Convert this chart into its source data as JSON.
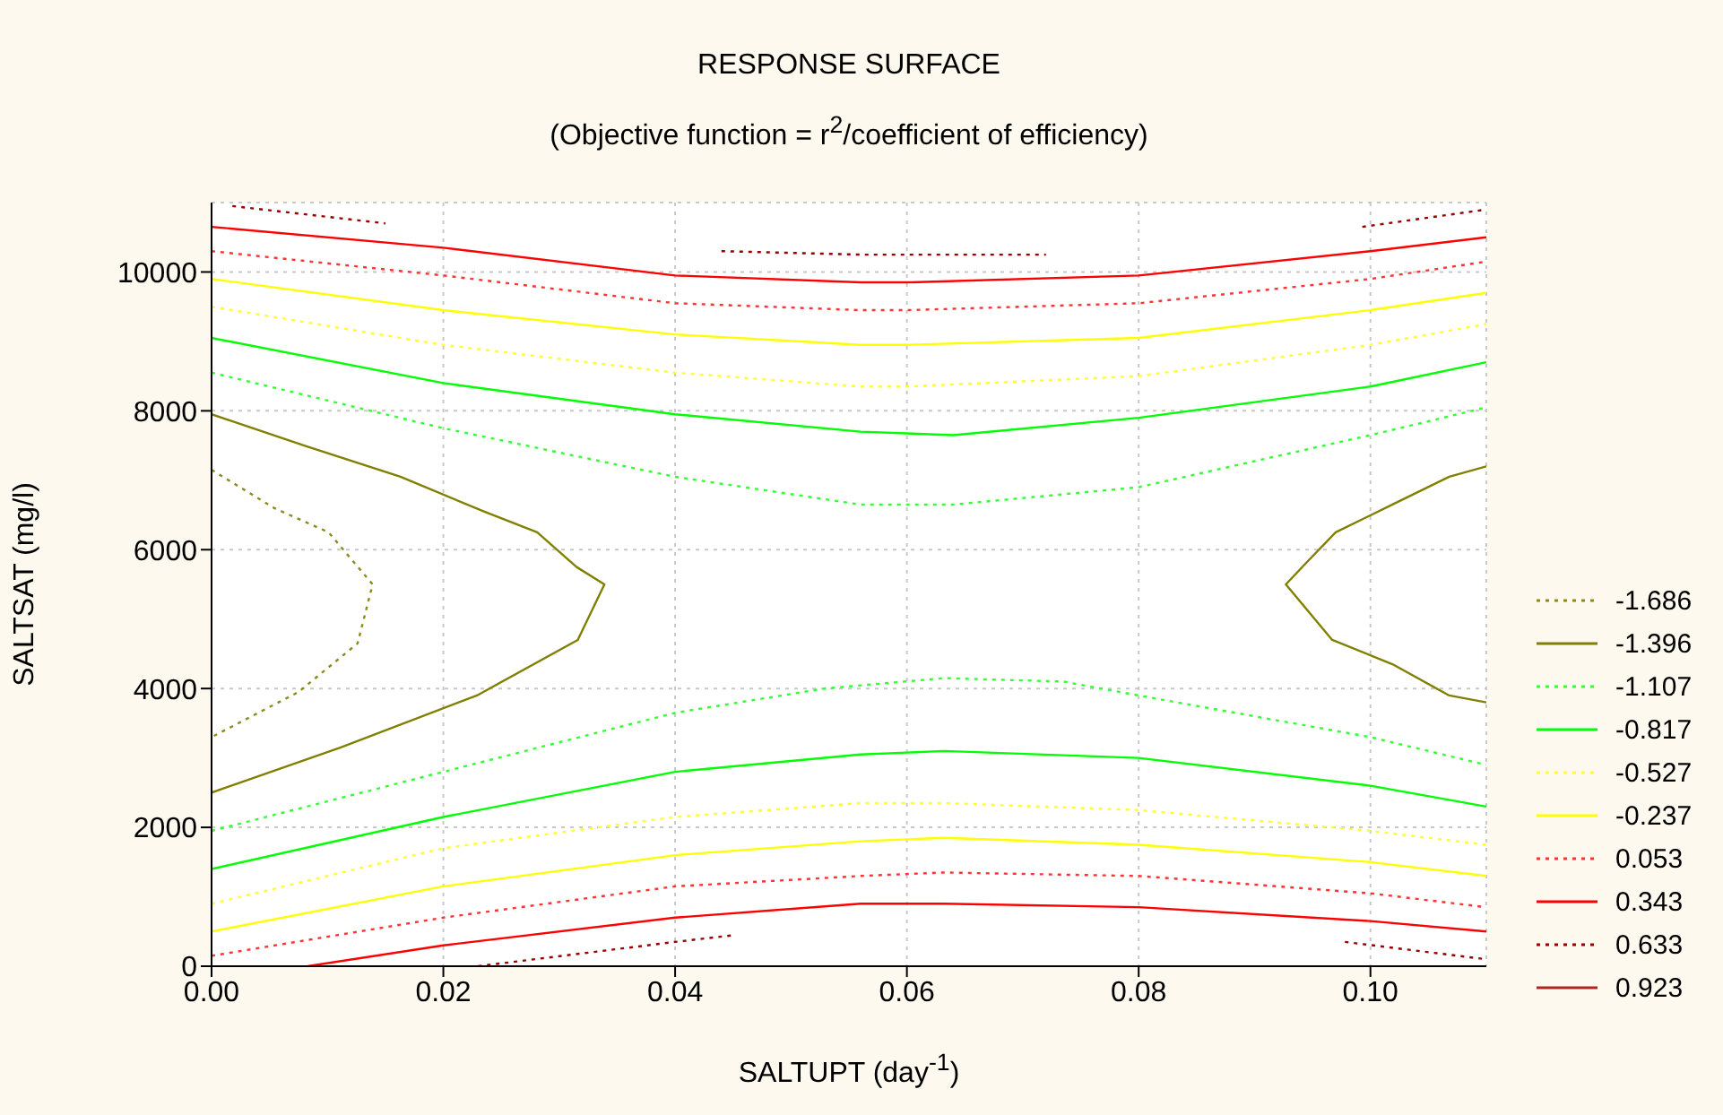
{
  "chart_data": {
    "type": "line",
    "title": "RESPONSE SURFACE",
    "subtitle": "(Objective function = r$^{2}$/coefficient of efficiency)",
    "xlabel": "SALTUPT (day$^{-1}$)",
    "ylabel": "SALTSAT (mg/l)",
    "xlim": [
      0,
      0.11
    ],
    "ylim": [
      0,
      11000
    ],
    "xticks": [
      {
        "value": 0,
        "label": "0.00"
      },
      {
        "value": 0.02,
        "label": "0.02"
      },
      {
        "value": 0.04,
        "label": "0.04"
      },
      {
        "value": 0.06,
        "label": "0.06"
      },
      {
        "value": 0.08,
        "label": "0.08"
      },
      {
        "value": 0.1,
        "label": "0.10"
      }
    ],
    "yticks": [
      0,
      2000,
      4000,
      6000,
      8000,
      10000
    ],
    "grid": true,
    "legend": "right",
    "marker": "none",
    "series": [
      {
        "name": "-1.686",
        "color": "#8c8a1a",
        "line_style": "dotted",
        "x": [
          0,
          0.0054,
          0.0101,
          0.0139,
          0.0126,
          0.0075,
          0
        ],
        "values": [
          7150,
          6600,
          6250,
          5500,
          4650,
          3950,
          3300
        ]
      },
      {
        "name": "-1.396",
        "color": "#808000",
        "line_style": "solid",
        "x": [
          0,
          0.008,
          0.0163,
          0.0235,
          0.0281,
          0.0315,
          0.0339,
          0.0316,
          0.0229,
          0.0111,
          0
        ],
        "values": [
          7950,
          7500,
          7050,
          6550,
          6250,
          5750,
          5500,
          4700,
          3900,
          3150,
          2500
        ]
      },
      {
        "color": "#808000",
        "line_style": "solid",
        "x": [
          0.11,
          0.1068,
          0.1019,
          0.097,
          0.0944,
          0.0927,
          0.0967,
          0.1019,
          0.1068,
          0.11
        ],
        "values": [
          7200,
          7050,
          6650,
          6250,
          5800,
          5500,
          4700,
          4350,
          3900,
          3800
        ]
      },
      {
        "name": "-1.107",
        "color": "#33ff33",
        "line_style": "dotted",
        "x": [
          0,
          0.02,
          0.04,
          0.056,
          0.064,
          0.08,
          0.1,
          0.11
        ],
        "values": [
          8550,
          7750,
          7050,
          6650,
          6650,
          6900,
          7650,
          8050
        ]
      },
      {
        "color": "#33ff33",
        "line_style": "dotted",
        "x": [
          0,
          0.02,
          0.04,
          0.0529,
          0.0632,
          0.0735,
          0.08,
          0.1,
          0.11
        ],
        "values": [
          1950,
          2800,
          3650,
          4000,
          4150,
          4100,
          3900,
          3300,
          2900
        ]
      },
      {
        "name": "-0.817",
        "color": "#00ff00",
        "line_style": "solid",
        "x": [
          0,
          0.02,
          0.04,
          0.056,
          0.064,
          0.08,
          0.1,
          0.11
        ],
        "values": [
          9050,
          8400,
          7950,
          7700,
          7650,
          7900,
          8350,
          8700
        ]
      },
      {
        "color": "#00ff00",
        "line_style": "solid",
        "x": [
          0,
          0.02,
          0.04,
          0.056,
          0.0632,
          0.08,
          0.1,
          0.11
        ],
        "values": [
          1400,
          2150,
          2800,
          3050,
          3100,
          3000,
          2600,
          2300
        ]
      },
      {
        "name": "-0.527",
        "color": "#ffff33",
        "line_style": "dotted",
        "x": [
          0,
          0.02,
          0.04,
          0.056,
          0.06,
          0.08,
          0.1,
          0.11
        ],
        "values": [
          9500,
          8950,
          8550,
          8350,
          8350,
          8500,
          8950,
          9250
        ]
      },
      {
        "color": "#ffff33",
        "line_style": "dotted",
        "x": [
          0,
          0.02,
          0.04,
          0.056,
          0.0632,
          0.08,
          0.1,
          0.11
        ],
        "values": [
          900,
          1700,
          2150,
          2350,
          2350,
          2250,
          1950,
          1750
        ]
      },
      {
        "name": "-0.237",
        "color": "#ffff00",
        "line_style": "solid",
        "x": [
          0,
          0.02,
          0.04,
          0.056,
          0.06,
          0.08,
          0.1,
          0.11
        ],
        "values": [
          9900,
          9450,
          9100,
          8950,
          8950,
          9050,
          9450,
          9700
        ]
      },
      {
        "color": "#ffff00",
        "line_style": "solid",
        "x": [
          0,
          0.02,
          0.04,
          0.056,
          0.0632,
          0.08,
          0.1,
          0.11
        ],
        "values": [
          500,
          1150,
          1600,
          1800,
          1850,
          1750,
          1500,
          1300
        ]
      },
      {
        "name": "0.053",
        "color": "#ff3333",
        "line_style": "dotted",
        "x": [
          0,
          0.02,
          0.04,
          0.056,
          0.06,
          0.08,
          0.1,
          0.11
        ],
        "values": [
          10300,
          9950,
          9550,
          9450,
          9450,
          9550,
          9900,
          10150
        ]
      },
      {
        "color": "#ff3333",
        "line_style": "dotted",
        "x": [
          0,
          0.02,
          0.04,
          0.056,
          0.0632,
          0.08,
          0.1,
          0.11
        ],
        "values": [
          150,
          700,
          1150,
          1300,
          1350,
          1300,
          1050,
          850
        ]
      },
      {
        "name": "0.343",
        "color": "#ff0000",
        "line_style": "solid",
        "x": [
          0,
          0.02,
          0.04,
          0.056,
          0.06,
          0.08,
          0.1,
          0.11
        ],
        "values": [
          10650,
          10350,
          9950,
          9850,
          9850,
          9950,
          10300,
          10500
        ]
      },
      {
        "color": "#ff0000",
        "line_style": "solid",
        "x": [
          0.0083,
          0.02,
          0.04,
          0.056,
          0.0632,
          0.08,
          0.1,
          0.11
        ],
        "values": [
          0,
          300,
          700,
          900,
          900,
          850,
          650,
          500
        ]
      },
      {
        "name": "0.633",
        "color": "#990000",
        "line_style": "dotted",
        "x": [
          0.0018,
          0.015
        ],
        "values": [
          10950,
          10700
        ]
      },
      {
        "color": "#990000",
        "line_style": "dotted",
        "x": [
          0.044,
          0.056,
          0.065,
          0.072
        ],
        "values": [
          10300,
          10250,
          10250,
          10250
        ]
      },
      {
        "color": "#990000",
        "line_style": "dotted",
        "x": [
          0.0993,
          0.11
        ],
        "values": [
          10650,
          10900
        ]
      },
      {
        "color": "#990000",
        "line_style": "dotted",
        "x": [
          0.023,
          0.04,
          0.0452
        ],
        "values": [
          0,
          350,
          450
        ]
      },
      {
        "color": "#990000",
        "line_style": "dotted",
        "x": [
          0.0978,
          0.11
        ],
        "values": [
          350,
          100
        ]
      },
      {
        "name": "0.923",
        "color": "#b22222",
        "line_style": "solid"
      }
    ]
  }
}
